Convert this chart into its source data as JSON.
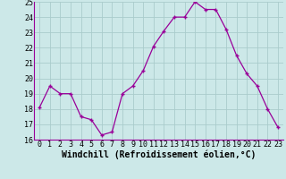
{
  "x": [
    0,
    1,
    2,
    3,
    4,
    5,
    6,
    7,
    8,
    9,
    10,
    11,
    12,
    13,
    14,
    15,
    16,
    17,
    18,
    19,
    20,
    21,
    22,
    23
  ],
  "y": [
    18.1,
    19.5,
    19.0,
    19.0,
    17.5,
    17.3,
    16.3,
    16.5,
    19.0,
    19.5,
    20.5,
    22.1,
    23.1,
    24.0,
    24.0,
    25.0,
    24.5,
    24.5,
    23.2,
    21.5,
    20.3,
    19.5,
    18.0,
    16.8
  ],
  "ylim": [
    16,
    25
  ],
  "yticks": [
    16,
    17,
    18,
    19,
    20,
    21,
    22,
    23,
    24,
    25
  ],
  "xticks": [
    0,
    1,
    2,
    3,
    4,
    5,
    6,
    7,
    8,
    9,
    10,
    11,
    12,
    13,
    14,
    15,
    16,
    17,
    18,
    19,
    20,
    21,
    22,
    23
  ],
  "xlabel": "Windchill (Refroidissement éolien,°C)",
  "line_color": "#990099",
  "marker": "+",
  "bg_color": "#cce8e8",
  "grid_color": "#aacccc",
  "tick_label_fontsize": 6.0,
  "xlabel_fontsize": 7.0
}
